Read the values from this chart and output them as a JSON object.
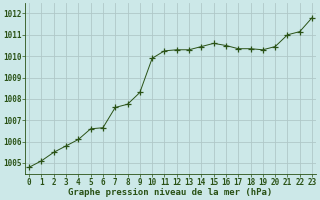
{
  "x": [
    0,
    1,
    2,
    3,
    4,
    5,
    6,
    7,
    8,
    9,
    10,
    11,
    12,
    13,
    14,
    15,
    16,
    17,
    18,
    19,
    20,
    21,
    22,
    23
  ],
  "y": [
    1004.8,
    1005.1,
    1005.5,
    1005.8,
    1006.1,
    1006.6,
    1006.65,
    1007.6,
    1007.75,
    1008.3,
    1009.9,
    1010.25,
    1010.3,
    1010.3,
    1010.45,
    1010.6,
    1010.5,
    1010.35,
    1010.35,
    1010.3,
    1010.45,
    1011.0,
    1011.15,
    1011.8
  ],
  "line_color": "#2a5216",
  "marker_color": "#2a5216",
  "bg_color": "#cce8e8",
  "grid_color": "#b0c8c8",
  "xlabel": "Graphe pression niveau de la mer (hPa)",
  "xlabel_color": "#2a5216",
  "tick_color": "#2a5216",
  "ylim": [
    1004.5,
    1012.5
  ],
  "yticks": [
    1005,
    1006,
    1007,
    1008,
    1009,
    1010,
    1011,
    1012
  ],
  "xticks": [
    0,
    1,
    2,
    3,
    4,
    5,
    6,
    7,
    8,
    9,
    10,
    11,
    12,
    13,
    14,
    15,
    16,
    17,
    18,
    19,
    20,
    21,
    22,
    23
  ],
  "font_size_xlabel": 6.5,
  "font_size_ticks": 5.5
}
